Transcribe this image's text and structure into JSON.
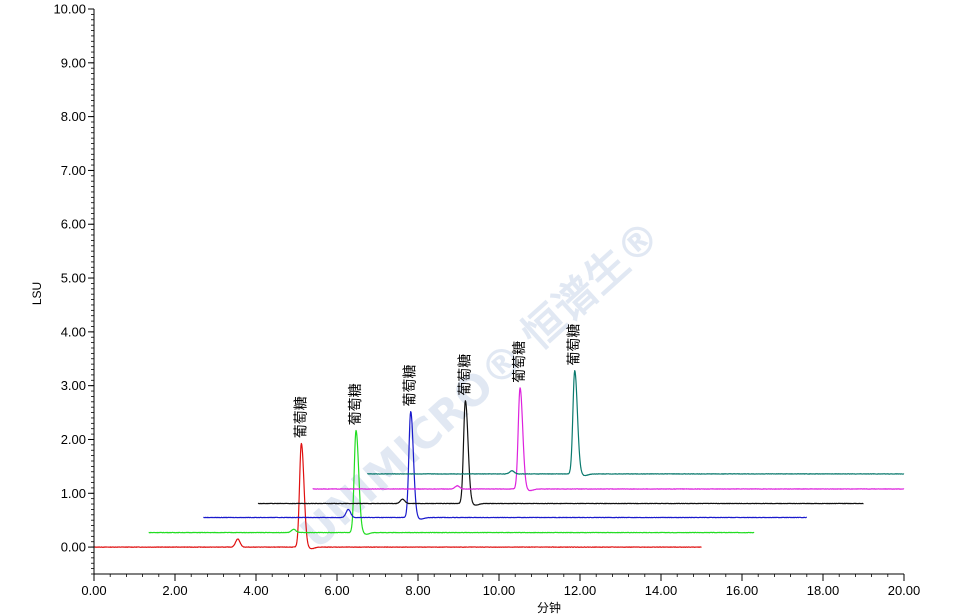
{
  "chart_data": {
    "type": "line",
    "title": "",
    "xlabel": "分钟",
    "ylabel": "LSU",
    "xlim": [
      0,
      20
    ],
    "ylim": [
      -0.5,
      10
    ],
    "x_ticks": [
      "0.00",
      "2.00",
      "4.00",
      "6.00",
      "8.00",
      "10.00",
      "12.00",
      "14.00",
      "16.00",
      "18.00",
      "20.00"
    ],
    "y_ticks": [
      "0.00",
      "1.00",
      "2.00",
      "3.00",
      "4.00",
      "5.00",
      "6.00",
      "7.00",
      "8.00",
      "9.00",
      "10.00"
    ],
    "grid": false,
    "watermark": "UNIMICRO® 恒谱生®",
    "series": [
      {
        "color": "#e01010",
        "x_start": 0.0,
        "x_end": 15.0,
        "baseline": 0.0,
        "small_peak": [
          3.55,
          0.15
        ],
        "peak": [
          5.12,
          1.93
        ],
        "peak_label": "葡萄糖"
      },
      {
        "color": "#22dd22",
        "x_start": 1.35,
        "x_end": 16.3,
        "baseline": 0.27,
        "small_peak": [
          4.93,
          0.06
        ],
        "peak": [
          6.47,
          1.9
        ],
        "peak_label": "葡萄糖"
      },
      {
        "color": "#1a1acc",
        "x_start": 2.7,
        "x_end": 17.6,
        "baseline": 0.55,
        "small_peak": [
          6.28,
          0.15
        ],
        "peak": [
          7.82,
          1.97
        ],
        "peak_label": "葡萄糖"
      },
      {
        "color": "#111111",
        "x_start": 4.05,
        "x_end": 19.0,
        "baseline": 0.81,
        "small_peak": [
          7.62,
          0.08
        ],
        "peak": [
          9.17,
          1.91
        ],
        "peak_label": "葡萄糖"
      },
      {
        "color": "#dd22dd",
        "x_start": 5.4,
        "x_end": 20.0,
        "baseline": 1.08,
        "small_peak": [
          8.97,
          0.06
        ],
        "peak": [
          10.52,
          1.88
        ],
        "peak_label": "葡萄糖"
      },
      {
        "color": "#0b7a6e",
        "x_start": 6.75,
        "x_end": 20.0,
        "baseline": 1.36,
        "small_peak": [
          10.32,
          0.06
        ],
        "peak": [
          11.87,
          1.92
        ],
        "peak_label": "葡萄糖"
      }
    ]
  }
}
